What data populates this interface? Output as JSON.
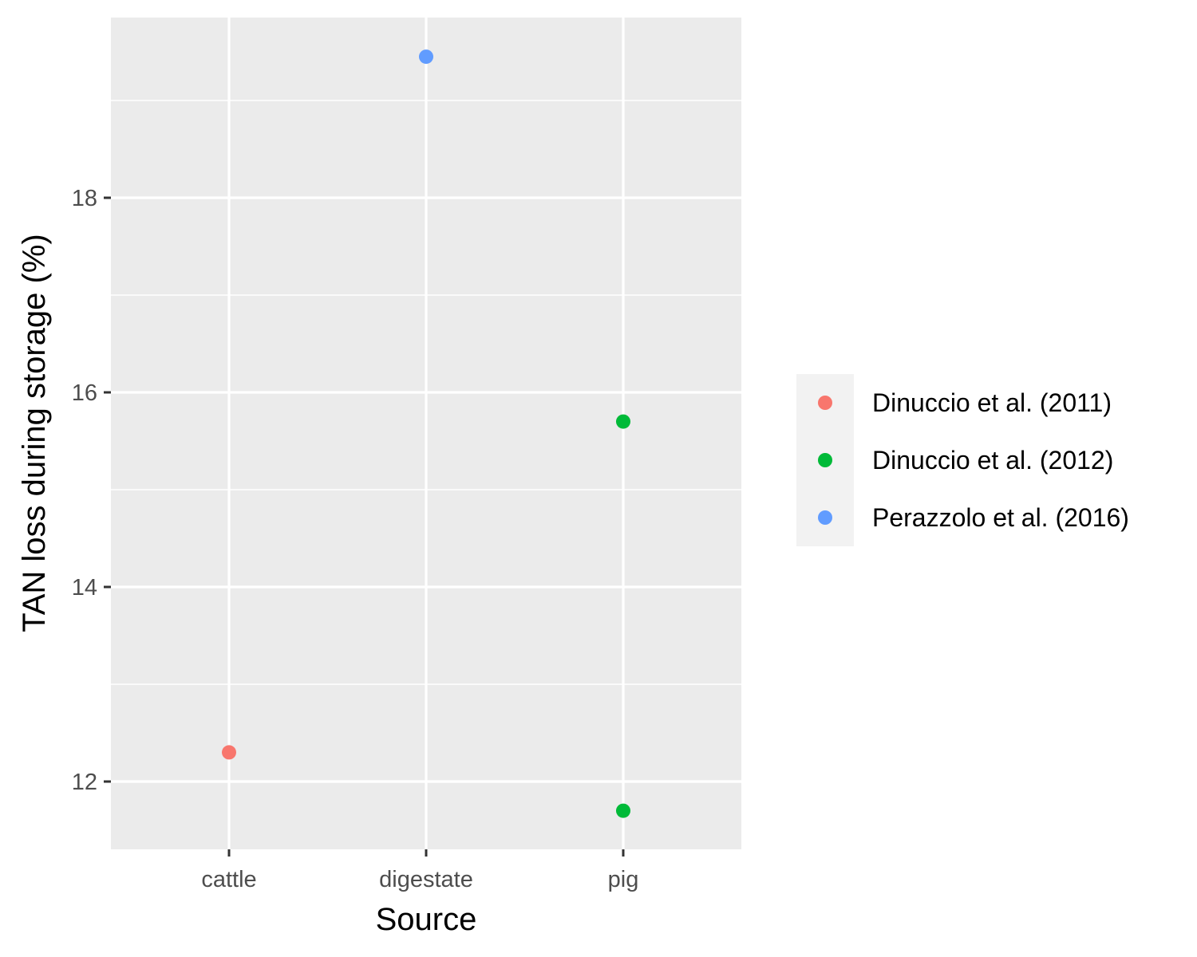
{
  "chart_data": {
    "type": "scatter",
    "title": "",
    "xlabel": "Source",
    "ylabel": "TAN loss during storage (%)",
    "categories": [
      "cattle",
      "digestate",
      "pig"
    ],
    "yticks": [
      12,
      14,
      16,
      18
    ],
    "ylim": [
      11.3,
      19.85
    ],
    "grid": true,
    "legend_position": "right",
    "series": [
      {
        "name": "Dinuccio et al. (2011)",
        "color": "#F8766D",
        "points": [
          {
            "x": "cattle",
            "y": 12.3
          }
        ]
      },
      {
        "name": "Dinuccio et al. (2012)",
        "color": "#00BA38",
        "points": [
          {
            "x": "pig",
            "y": 15.7
          },
          {
            "x": "pig",
            "y": 11.7
          }
        ]
      },
      {
        "name": "Perazzolo et al. (2016)",
        "color": "#619CFF",
        "points": [
          {
            "x": "digestate",
            "y": 19.45
          }
        ]
      }
    ],
    "colors": {
      "panel": "#EBEBEB",
      "grid": "#FFFFFF",
      "legend_key": "#F2F2F2"
    }
  }
}
